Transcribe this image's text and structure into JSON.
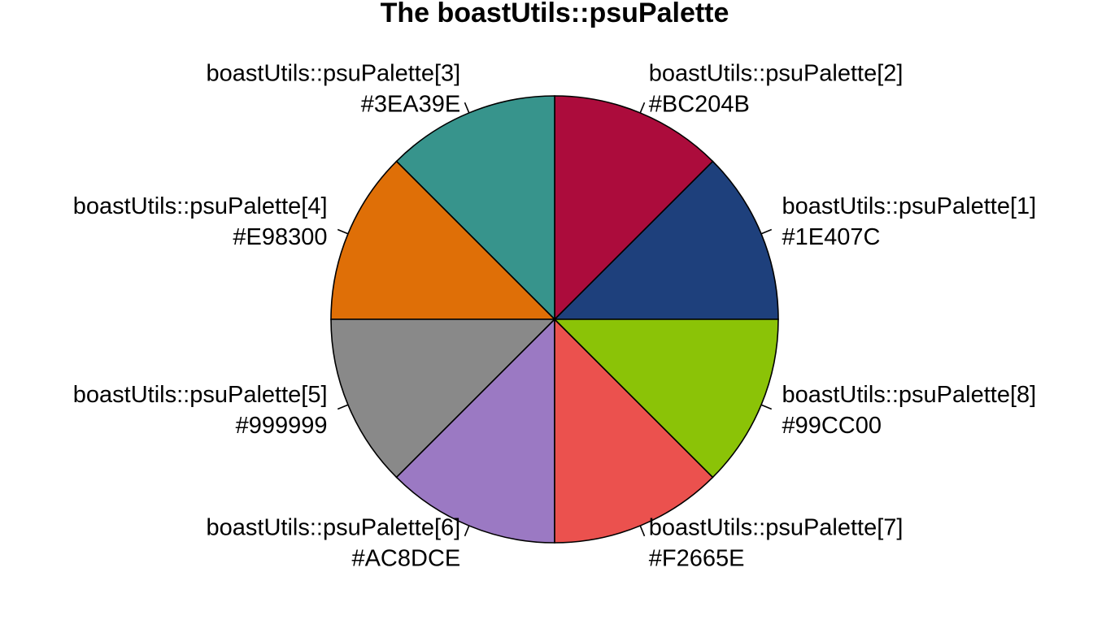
{
  "chart_data": {
    "type": "pie",
    "title": "The boastUtils::psuPalette",
    "direction": "counterclockwise",
    "start": "east",
    "slices": [
      {
        "label": "boastUtils::psuPalette[1]",
        "hex": "#1E407C",
        "value": 1,
        "color": "#1E407C"
      },
      {
        "label": "boastUtils::psuPalette[2]",
        "hex": "#BC204B",
        "value": 1,
        "color": "#AC0C3C"
      },
      {
        "label": "boastUtils::psuPalette[3]",
        "hex": "#3EA39E",
        "value": 1,
        "color": "#37948C"
      },
      {
        "label": "boastUtils::psuPalette[4]",
        "hex": "#E98300",
        "value": 1,
        "color": "#DF6F07"
      },
      {
        "label": "boastUtils::psuPalette[5]",
        "hex": "#999999",
        "value": 1,
        "color": "#898989"
      },
      {
        "label": "boastUtils::psuPalette[6]",
        "hex": "#AC8DCE",
        "value": 1,
        "color": "#9B79C3"
      },
      {
        "label": "boastUtils::psuPalette[7]",
        "hex": "#F2665E",
        "value": 1,
        "color": "#EB514E"
      },
      {
        "label": "boastUtils::psuPalette[8]",
        "hex": "#99CC00",
        "value": 1,
        "color": "#8BC307"
      }
    ]
  }
}
